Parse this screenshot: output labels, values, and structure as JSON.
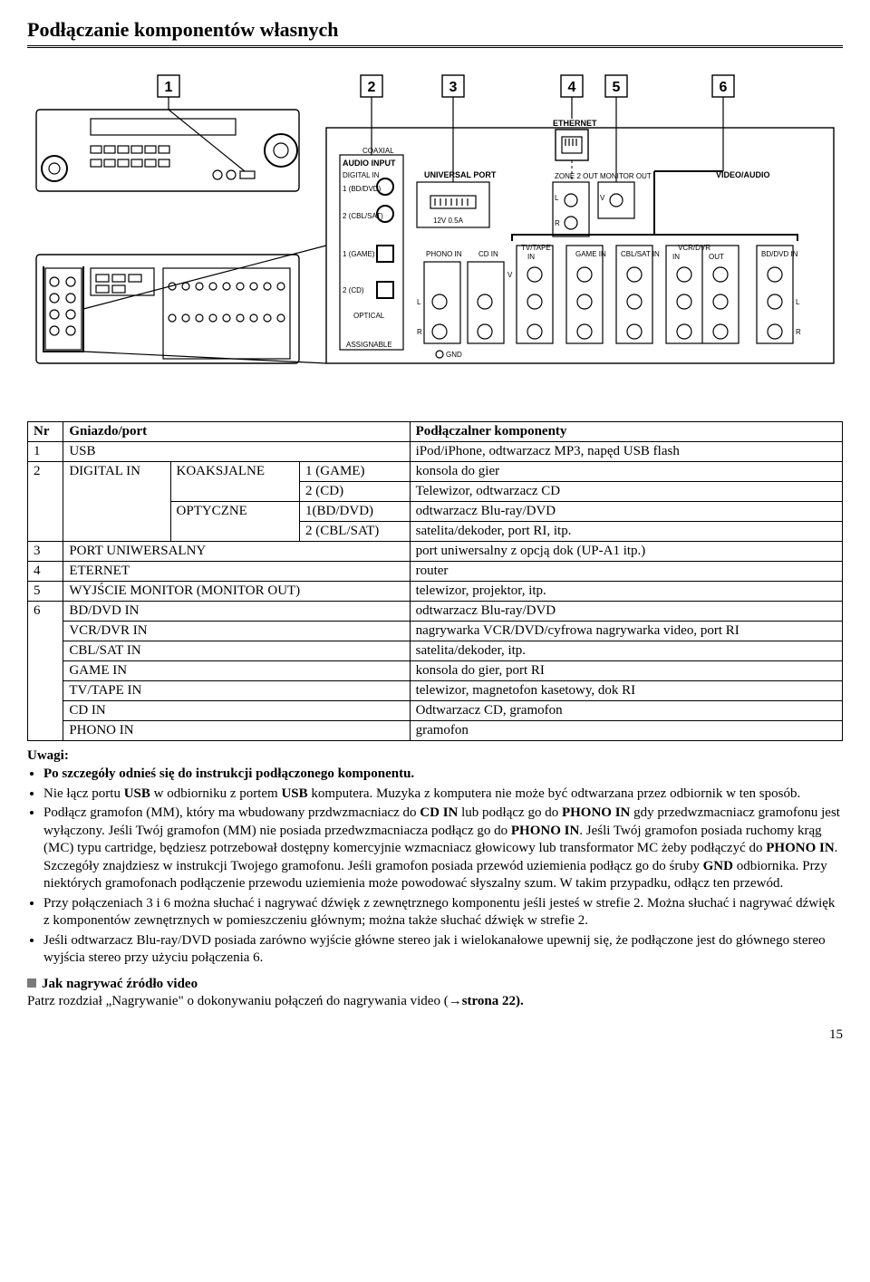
{
  "title": "Podłączanie komponentów własnych",
  "diagram": {
    "callouts": [
      "1",
      "2",
      "3",
      "4",
      "5",
      "6"
    ],
    "backpanel_labels": {
      "audio_input": "AUDIO INPUT",
      "coaxial": "COAXIAL",
      "digitalin": "DIGITAL IN",
      "opt1": "1 (BD/DVD)",
      "opt2": "2 (CBL/SAT)",
      "game1": "1 (GAME)",
      "cd2": "2 (CD)",
      "optical": "OPTICAL",
      "assignable": "ASSIGNABLE",
      "universal": "UNIVERSAL PORT",
      "univ_sub": "12V 0.5A",
      "ethernet": "ETHERNET",
      "zone2": "ZONE 2 OUT",
      "monitor_out": "MONITOR OUT",
      "video_audio": "VIDEO/AUDIO",
      "phono_in": "PHONO IN",
      "cd_in": "CD IN",
      "tvtape": "TV/TAPE",
      "tvtape_in": "IN",
      "game_in": "GAME IN",
      "cblsat_in": "CBL/SAT IN",
      "vcrdvr": "VCR/DVR",
      "vcrdvr_in": "IN",
      "vcrdvr_out": "OUT",
      "bddvd_in": "BD/DVD IN",
      "L": "L",
      "R": "R",
      "V": "V",
      "gnd": "GND"
    }
  },
  "table": {
    "headers": [
      "Nr",
      "Gniazdo/port",
      "",
      "Podłączalner komponenty"
    ],
    "rows": [
      {
        "nr": "1",
        "port": "USB",
        "sub": "",
        "comp": "iPod/iPhone, odtwarzacz MP3, napęd USB flash"
      },
      {
        "nr": "2",
        "port": "DIGITAL IN",
        "sub_label": "KOAKSJALNE",
        "sub": "1 (GAME)",
        "comp": "konsola do gier"
      },
      {
        "nr": "",
        "port": "",
        "sub": "2 (CD)",
        "comp": "Telewizor, odtwarzacz CD"
      },
      {
        "nr": "",
        "port": "",
        "sub_label": "OPTYCZNE",
        "sub": "1(BD/DVD)",
        "comp": "odtwarzacz Blu-ray/DVD"
      },
      {
        "nr": "",
        "port": "",
        "sub": "2 (CBL/SAT)",
        "comp": "satelita/dekoder, port RI, itp."
      },
      {
        "nr": "3",
        "port": "PORT UNIWERSALNY",
        "sub": "",
        "comp": "port uniwersalny z opcją dok (UP-A1 itp.)"
      },
      {
        "nr": "4",
        "port": "ETERNET",
        "sub": "",
        "comp": "router"
      },
      {
        "nr": "5",
        "port": "WYJŚCIE MONITOR (MONITOR OUT)",
        "sub": "",
        "comp": "telewizor, projektor, itp."
      },
      {
        "nr": "6",
        "port": "BD/DVD IN",
        "sub": "",
        "comp": "odtwarzacz Blu-ray/DVD"
      },
      {
        "nr": "",
        "port": "VCR/DVR IN",
        "sub": "",
        "comp": "nagrywarka VCR/DVD/cyfrowa nagrywarka video, port RI"
      },
      {
        "nr": "",
        "port": "CBL/SAT IN",
        "sub": "",
        "comp": "satelita/dekoder, itp."
      },
      {
        "nr": "",
        "port": "GAME IN",
        "sub": "",
        "comp": "konsola do gier, port RI"
      },
      {
        "nr": "",
        "port": "TV/TAPE IN",
        "sub": "",
        "comp": "telewizor, magnetofon kasetowy, dok RI"
      },
      {
        "nr": "",
        "port": "CD IN",
        "sub": "",
        "comp": "Odtwarzacz CD, gramofon"
      },
      {
        "nr": "",
        "port": "PHONO IN",
        "sub": "",
        "comp": "gramofon"
      }
    ]
  },
  "notes_heading": "Uwagi:",
  "notes": [
    "Po szczegóły odnieś się do instrukcji podłączonego komponentu.",
    "Nie łącz portu USB w odbiorniku z portem USB komputera. Muzyka z komputera nie może być odtwarzana przez odbiornik w ten sposób.",
    "Podłącz gramofon (MM), który ma wbudowany przdwzmacniacz do CD IN lub podłącz go do PHONO IN gdy przedwzmacniacz gramofonu jest wyłączony. Jeśli Twój gramofon (MM) nie posiada przedwzmacniacza podłącz go do PHONO IN. Jeśli Twój gramofon posiada ruchomy krąg (MC) typu cartridge, będziesz potrzebował dostępny komercyjnie wzmacniacz głowicowy lub transformator MC żeby podłączyć do PHONO IN. Szczegóły znajdziesz w instrukcji Twojego gramofonu. Jeśli gramofon posiada przewód uziemienia podłącz go do śruby GND odbiornika. Przy niektórych gramofonach podłączenie przewodu uziemienia może powodować słyszalny szum. W takim przypadku, odłącz ten przewód.",
    "Przy połączeniach 3 i 6 można słuchać i nagrywać dźwięk z zewnętrznego komponentu jeśli jesteś w strefie 2. Można słuchać i nagrywać dźwięk z komponentów zewnętrznych w pomieszczeniu głównym; można także słuchać dźwięk w strefie 2.",
    "Jeśli odtwarzacz Blu-ray/DVD posiada zarówno wyjście główne stereo jak i wielokanałowe upewnij się, że podłączone jest do głównego stereo wyjścia stereo przy użyciu połączenia 6."
  ],
  "notes_bold_terms": {
    "0": [
      "Po szczegóły odnieś się do instrukcji podłączonego komponentu."
    ],
    "1": [
      "USB"
    ],
    "2": [
      "CD IN",
      "PHONO IN",
      "GND"
    ],
    "3": [],
    "4": []
  },
  "sub_heading": "Jak nagrywać źródło video",
  "ref_line": "Patrz rozdział „Nagrywanie\" o dokonywaniu połączeń do nagrywania video (→strona 22).",
  "ref_strong": "strona 22",
  "page_number": "15"
}
